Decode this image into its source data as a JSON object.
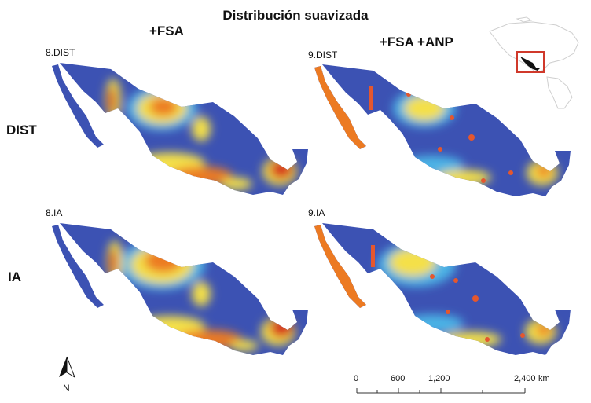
{
  "title": "Distribución suavizada",
  "columns": [
    "+FSA",
    "+FSA +ANP"
  ],
  "rows": [
    "DIST",
    "IA"
  ],
  "panels": [
    {
      "label": "8.DIST",
      "row": "DIST",
      "column": "+FSA",
      "overlay": false
    },
    {
      "label": "9.DIST",
      "row": "DIST",
      "column": "+FSA +ANP",
      "overlay": true
    },
    {
      "label": "8.IA",
      "row": "IA",
      "column": "+FSA",
      "overlay": false
    },
    {
      "label": "9.IA",
      "row": "IA",
      "column": "+FSA +ANP",
      "overlay": true
    }
  ],
  "north_arrow": {
    "label": "N"
  },
  "scale_bar": {
    "tick_labels": [
      "0",
      "600",
      "1,200",
      "2,400"
    ],
    "unit": "km"
  },
  "colors": {
    "low": "#3c52b3",
    "mid_low": "#4cb4e6",
    "mid": "#b8e6d0",
    "mid_high": "#f4e04a",
    "high": "#ec7a22",
    "max": "#d62a1a",
    "anp_overlay": "#e4572e",
    "inset_frame": "#d0392b"
  }
}
